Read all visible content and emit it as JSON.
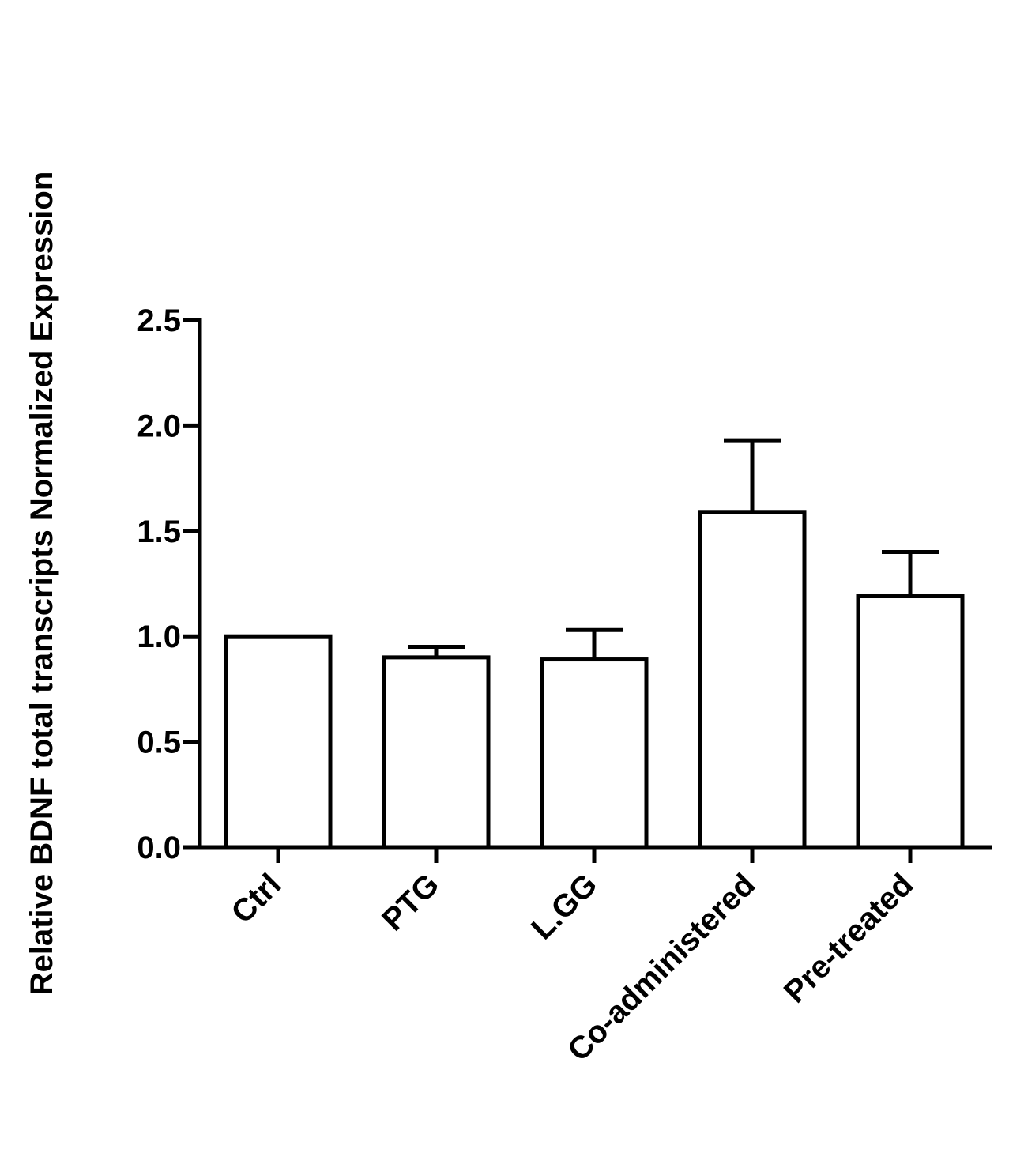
{
  "chart_data": {
    "type": "bar",
    "title": "",
    "xlabel": "",
    "ylabel": "Relative BDNF total transcripts Normalized Expression",
    "categories": [
      "Ctrl",
      "PTG",
      "L.GG",
      "Co-administered",
      "Pre-treated"
    ],
    "values": [
      1.0,
      0.9,
      0.89,
      1.59,
      1.19
    ],
    "error_upper": [
      0.0,
      0.05,
      0.14,
      0.34,
      0.21
    ],
    "ylim": [
      0,
      2.5
    ],
    "yticks": [
      "0.0",
      "0.5",
      "1.0",
      "1.5",
      "2.0",
      "2.5"
    ],
    "grid": false,
    "legend": "none",
    "bar_fill": "#ffffff",
    "bar_stroke": "#000000"
  }
}
